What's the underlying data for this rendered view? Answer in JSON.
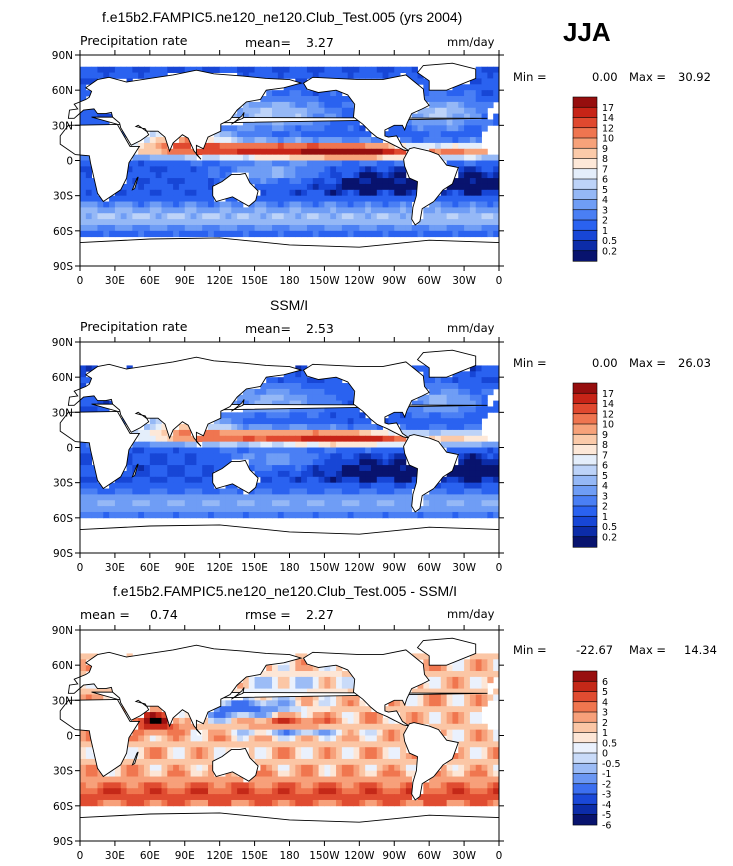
{
  "season": "JJA",
  "panels": [
    {
      "title": "f.e15b2.FAMPIC5.ne120_ne120.Club_Test.005 (yrs 2004)",
      "left_label": "Precipitation rate",
      "stat1_label": "mean=",
      "stat1_value": "3.27",
      "stat2_label": "",
      "stat2_value": "",
      "units": "mm/day",
      "min_label": "Min =",
      "min_value": "0.00",
      "max_label": "Max =",
      "max_value": "30.92",
      "colorbar_labels": [
        "17",
        "14",
        "12",
        "10",
        "9",
        "8",
        "7",
        "6",
        "5",
        "4",
        "3",
        "2",
        "1",
        "0.5",
        "0.2"
      ]
    },
    {
      "title": "SSM/I",
      "left_label": "Precipitation rate",
      "stat1_label": "mean=",
      "stat1_value": "2.53",
      "stat2_label": "",
      "stat2_value": "",
      "units": "mm/day",
      "min_label": "Min =",
      "min_value": "0.00",
      "max_label": "Max =",
      "max_value": "26.03",
      "colorbar_labels": [
        "17",
        "14",
        "12",
        "10",
        "9",
        "8",
        "7",
        "6",
        "5",
        "4",
        "3",
        "2",
        "1",
        "0.5",
        "0.2"
      ]
    },
    {
      "title": "f.e15b2.FAMPIC5.ne120_ne120.Club_Test.005 - SSM/I",
      "left_label": "",
      "stat1_label": "mean =",
      "stat1_value": "0.74",
      "stat2_label": "rmse =",
      "stat2_value": "2.27",
      "units": "mm/day",
      "min_label": "Min =",
      "min_value": "-22.67",
      "max_label": "Max =",
      "max_value": "14.34",
      "colorbar_labels": [
        "6",
        "5",
        "4",
        "3",
        "2",
        "1",
        "0.5",
        "0",
        "-0.5",
        "-1",
        "-2",
        "-3",
        "-4",
        "-5",
        "-6"
      ]
    }
  ],
  "lat_ticks": [
    "90N",
    "60N",
    "30N",
    "0",
    "30S",
    "60S",
    "90S"
  ],
  "lon_ticks": [
    "0",
    "30E",
    "60E",
    "90E",
    "120E",
    "150E",
    "180",
    "150W",
    "120W",
    "90W",
    "60W",
    "30W",
    "0"
  ],
  "colors": {
    "precip_scale": [
      "#08136e",
      "#0c2ca8",
      "#1746d6",
      "#2a62f0",
      "#4a7ff4",
      "#6f9df5",
      "#95b8f6",
      "#bdd3f8",
      "#e4eefb",
      "#fde8d8",
      "#fbcaa9",
      "#f7a27a",
      "#ef7550",
      "#e0492f",
      "#c72417",
      "#960e0e"
    ],
    "diff_scale": [
      "#08136e",
      "#0c2ca8",
      "#1a48d8",
      "#3c6ff0",
      "#6b97f3",
      "#9cbcf6",
      "#c9dbf9",
      "#eaf1fd",
      "#fde6d6",
      "#fbc6a5",
      "#f7a07a",
      "#f0764f",
      "#e04c31",
      "#c42818",
      "#980f0f"
    ]
  }
}
